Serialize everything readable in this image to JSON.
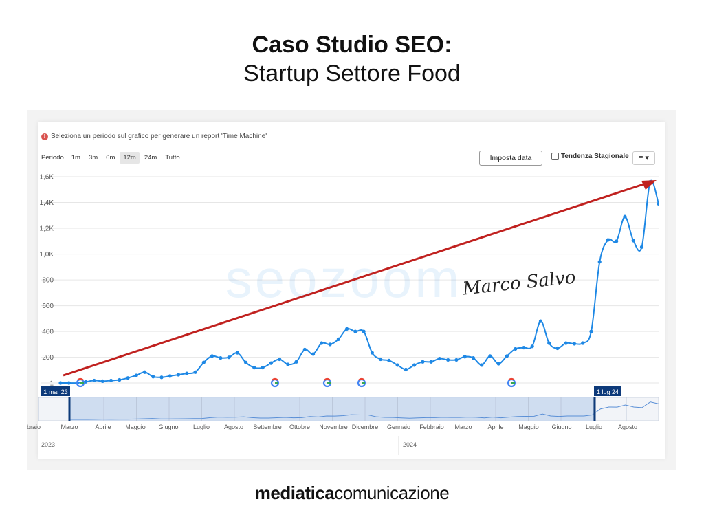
{
  "title": "Caso Studio SEO:",
  "subtitle": "Startup Settore Food",
  "notice": "Seleziona un periodo sul grafico per generare un report 'Time Machine'",
  "notice_icon": "exclamation-icon",
  "period_label": "Periodo",
  "period_options": [
    "1m",
    "3m",
    "6m",
    "12m",
    "24m",
    "Tutto"
  ],
  "period_active": "12m",
  "set_date_button": "Imposta data",
  "seasonal_trend_label": "Tendenza Stagionale",
  "menu_button": "≡ ▾",
  "watermark": "seozoom",
  "signature": "Marco Salvo",
  "footer_logo": {
    "bold": "mediatica",
    "regular": "comunicazione"
  },
  "colors": {
    "line": "#1e88e5",
    "arrow": "#c0211f",
    "navigator_fill": "#c9d8ee",
    "handle": "#0d3a7a"
  },
  "chart_data": {
    "type": "line",
    "y_ticks": [
      "1",
      "200",
      "400",
      "600",
      "800",
      "1,0K",
      "1,2K",
      "1,4K",
      "1,6K"
    ],
    "ylim": [
      1,
      1600
    ],
    "x_month_labels": [
      "braio",
      "Marzo",
      "Aprile",
      "Maggio",
      "Giugno",
      "Luglio",
      "Agosto",
      "Settembre",
      "Ottobre",
      "Novembre",
      "Dicembre",
      "Gennaio",
      "Febbraio",
      "Marzo",
      "Aprile",
      "Maggio",
      "Giugno",
      "Luglio",
      "Agosto"
    ],
    "year_labels": [
      "2023",
      "2024"
    ],
    "range_start_label": "1 mar 23",
    "range_end_label": "1 lug 24",
    "series": [
      {
        "values": [
          1,
          1,
          1,
          10,
          20,
          15,
          20,
          25,
          40,
          60,
          85,
          50,
          45,
          55,
          65,
          75,
          85,
          160,
          210,
          195,
          200,
          235,
          160,
          120,
          120,
          155,
          185,
          145,
          165,
          260,
          225,
          310,
          300,
          340,
          420,
          400,
          400,
          235,
          185,
          175,
          140,
          105,
          140,
          165,
          165,
          190,
          180,
          180,
          205,
          195,
          140,
          210,
          150,
          210,
          265,
          275,
          285,
          480,
          310,
          270,
          310,
          305,
          310,
          400,
          940,
          1110,
          1100,
          1290,
          1105,
          1055,
          1560,
          1390
        ]
      }
    ],
    "google_update_markers": [
      "2023-03",
      "2023-09",
      "2023-11",
      "2023-12",
      "2024-04"
    ],
    "trend_arrow": "upward"
  }
}
